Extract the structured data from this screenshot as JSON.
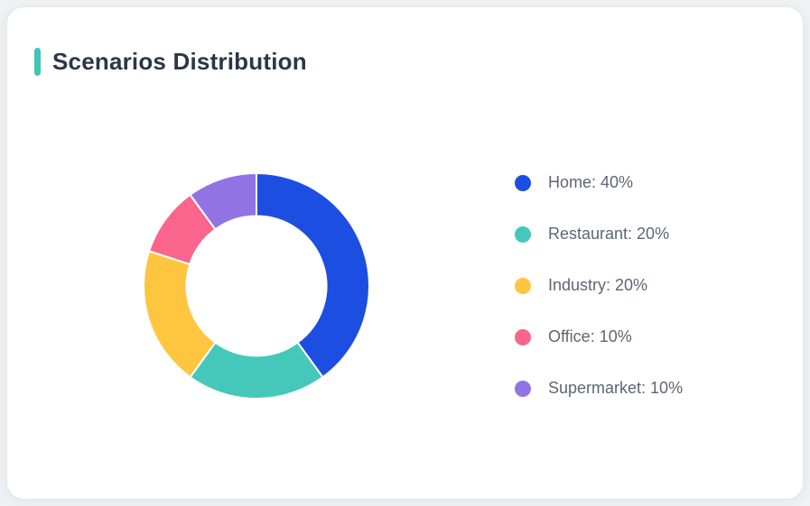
{
  "page": {
    "background": "#f0f1f4"
  },
  "card": {
    "background": "#ffffff"
  },
  "header": {
    "title": "Scenarios Distribution",
    "accent_color": "#3ec6b8",
    "title_color": "#2b3648"
  },
  "chart_data": {
    "type": "pie",
    "donut": true,
    "title": "Scenarios Distribution",
    "categories": [
      "Home",
      "Restaurant",
      "Industry",
      "Office",
      "Supermarket"
    ],
    "values": [
      40,
      20,
      20,
      10,
      10
    ],
    "unit": "%",
    "colors": [
      "#1d4ee2",
      "#45c8ba",
      "#fec53e",
      "#f9658c",
      "#9173e4"
    ],
    "start_angle_deg": 0,
    "direction": "clockwise",
    "inner_radius_ratio": 0.62,
    "outer_radius_px": 125,
    "slice_gap_color": "#ffffff",
    "legend_position": "right",
    "legend_text_color": "#5d6673",
    "legend_items": [
      {
        "display": "Home: 40%",
        "color": "#1d4ee2"
      },
      {
        "display": "Restaurant: 20%",
        "color": "#45c8ba"
      },
      {
        "display": "Industry: 20%",
        "color": "#fec53e"
      },
      {
        "display": "Office: 10%",
        "color": "#f9658c"
      },
      {
        "display": "Supermarket: 10%",
        "color": "#9173e4"
      }
    ]
  }
}
